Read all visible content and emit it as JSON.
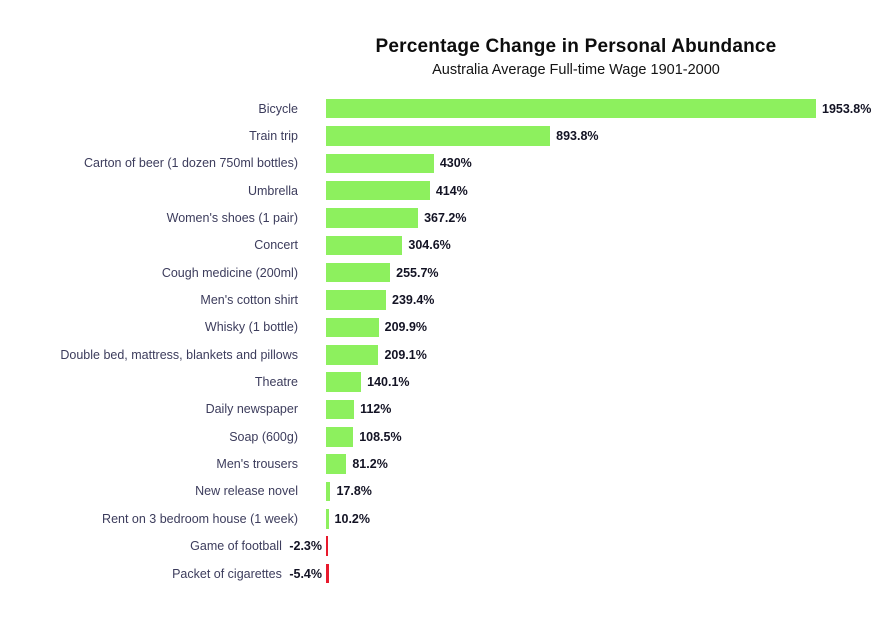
{
  "chart_data": {
    "type": "bar",
    "orientation": "horizontal",
    "title": "Percentage Change in Personal Abundance",
    "subtitle": "Australia Average Full-time Wage 1901-2000",
    "categories": [
      "Bicycle",
      "Train trip",
      "Carton of beer (1 dozen 750ml bottles)",
      "Umbrella",
      "Women's shoes (1 pair)",
      "Concert",
      "Cough medicine (200ml)",
      "Men's cotton shirt",
      "Whisky (1 bottle)",
      "Double bed, mattress, blankets and pillows",
      "Theatre",
      "Daily newspaper",
      "Soap (600g)",
      "Men's trousers",
      "New release novel",
      "Rent on 3 bedroom house (1 week)",
      "Game of football",
      "Packet of cigarettes"
    ],
    "values": [
      1953.8,
      893.8,
      430,
      414,
      367.2,
      304.6,
      255.7,
      239.4,
      209.9,
      209.1,
      140.1,
      112,
      108.5,
      81.2,
      17.8,
      10.2,
      -2.3,
      -5.4
    ],
    "value_labels": [
      "1953.8%",
      "893.8%",
      "430%",
      "414%",
      "367.2%",
      "304.6%",
      "255.7%",
      "239.4%",
      "209.9%",
      "209.1%",
      "140.1%",
      "112%",
      "108.5%",
      "81.2%",
      "17.8%",
      "10.2%",
      "-2.3%",
      "-5.4%"
    ],
    "unit": "%",
    "xlim": [
      -10,
      2000
    ],
    "grid": false,
    "legend": false,
    "colors": {
      "positive_bar": "#8DF05E",
      "negative_bar": "#E8192C",
      "category_text": "#3C3C5C",
      "value_text": "#131324",
      "background": "#FFFFFF"
    }
  }
}
